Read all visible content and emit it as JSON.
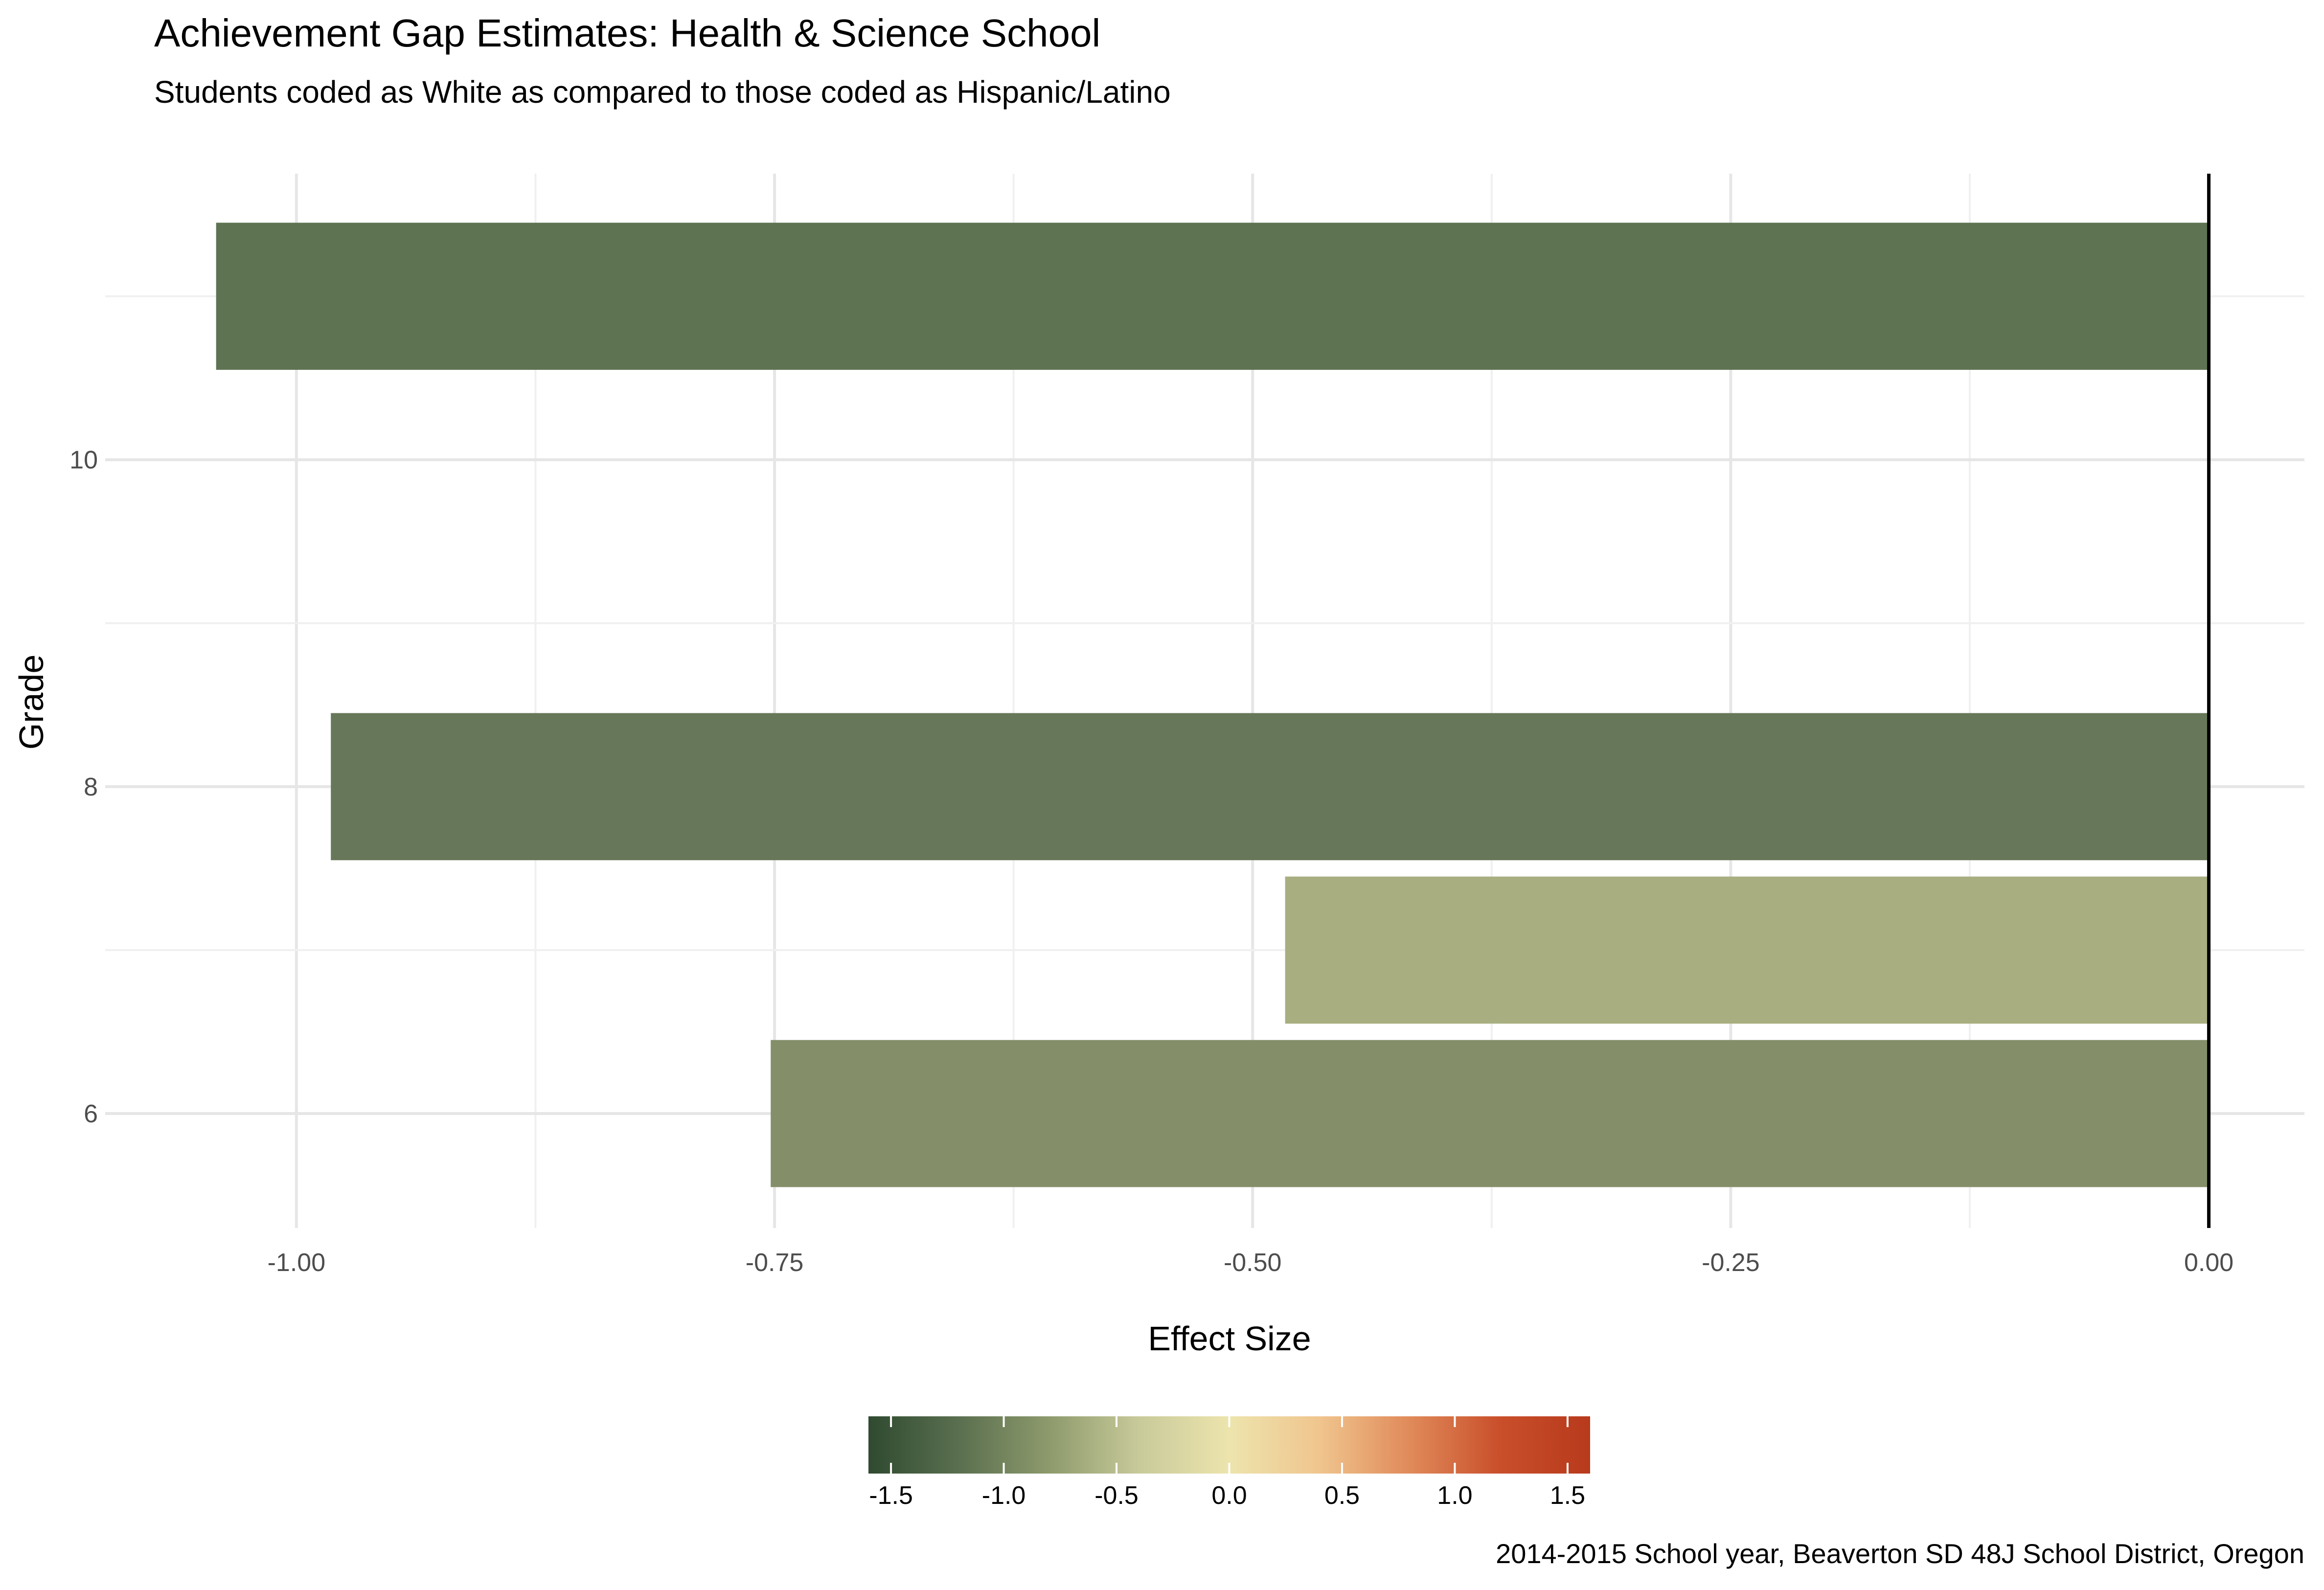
{
  "chart_data": {
    "type": "bar",
    "orientation": "horizontal",
    "title": "Achievement Gap Estimates: Health & Science School",
    "subtitle": "Students coded as White as compared to those coded as Hispanic/Latino",
    "xlabel": "Effect Size",
    "ylabel": "Grade",
    "caption": "2014-2015 School year, Beaverton SD 48J School District, Oregon",
    "xlim": [
      -1.1,
      0.05
    ],
    "ylim": [
      5.3,
      11.75
    ],
    "x_ticks": [
      -1.0,
      -0.75,
      -0.5,
      -0.25,
      0.0
    ],
    "x_tick_labels": [
      "-1.00",
      "-0.75",
      "-0.50",
      "-0.25",
      "0.00"
    ],
    "y_ticks": [
      6,
      8,
      10
    ],
    "y_tick_labels": [
      "6",
      "8",
      "10"
    ],
    "grid": true,
    "reference_line_x": 0,
    "bars": [
      {
        "grade": 6,
        "value": -0.752,
        "color": "#848f6a"
      },
      {
        "grade": 7,
        "value": -0.483,
        "color": "#a8ae80"
      },
      {
        "grade": 8,
        "value": -0.982,
        "color": "#67785a"
      },
      {
        "grade": 11,
        "value": -1.042,
        "color": "#5e7352"
      }
    ],
    "legend": {
      "position": "bottom",
      "type": "colorbar",
      "limits": [
        -1.6,
        1.6
      ],
      "breaks": [
        -1.5,
        -1.0,
        -0.5,
        0.0,
        0.5,
        1.0,
        1.5
      ],
      "break_labels": [
        "-1.5",
        "-1.0",
        "-0.5",
        "0.0",
        "0.5",
        "1.0",
        "1.5"
      ],
      "colors": [
        "#2f4a30",
        "#5a6f4f",
        "#8d9a6c",
        "#c8ca9a",
        "#ede4ad",
        "#f0c58e",
        "#e08a5a",
        "#c94f2b",
        "#b73a1c"
      ]
    }
  }
}
